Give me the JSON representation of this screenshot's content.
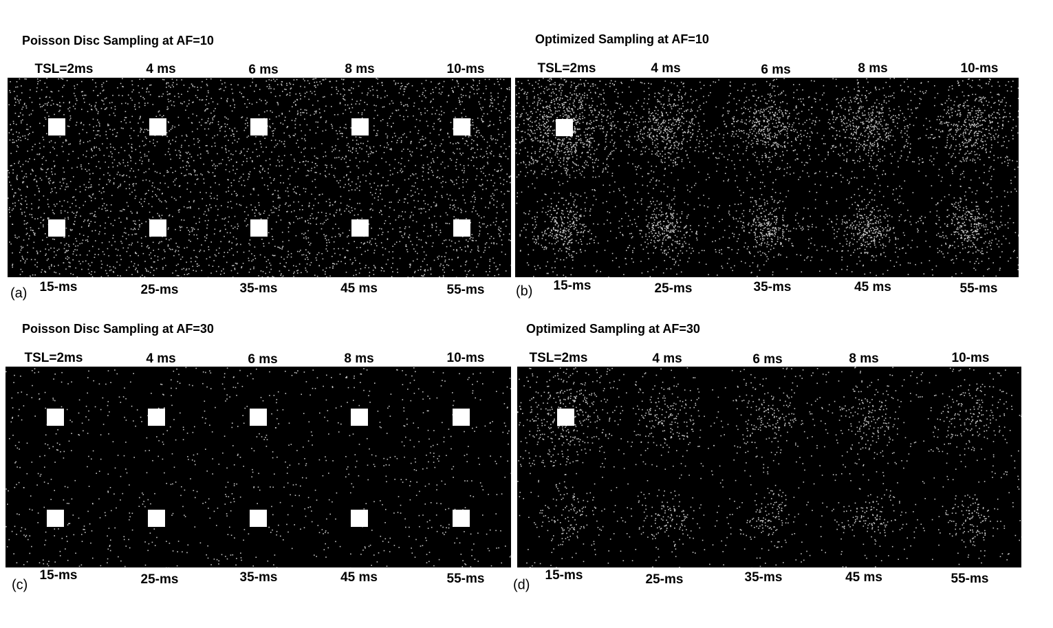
{
  "panels": [
    {
      "letter": "(a)",
      "title": "Poisson Disc Sampling at AF=10",
      "top_labels": [
        "TSL=2ms",
        "4 ms",
        "6 ms",
        "8 ms",
        "10-ms"
      ],
      "bottom_labels": [
        "15-ms",
        "25-ms",
        "35-ms",
        "45 ms",
        "55-ms"
      ]
    },
    {
      "letter": "(b)",
      "title": "Optimized Sampling at AF=10",
      "top_labels": [
        "TSL=2ms",
        "4 ms",
        "6 ms",
        "8 ms",
        "10-ms"
      ],
      "bottom_labels": [
        "15-ms",
        "25-ms",
        "35-ms",
        "45 ms",
        "55-ms"
      ]
    },
    {
      "letter": "(c)",
      "title": "Poisson Disc Sampling at AF=30",
      "top_labels": [
        "TSL=2ms",
        "4 ms",
        "6 ms",
        "8 ms",
        "10-ms"
      ],
      "bottom_labels": [
        "15-ms",
        "25-ms",
        "35-ms",
        "45 ms",
        "55-ms"
      ]
    },
    {
      "letter": "(d)",
      "title": "Optimized Sampling at AF=30",
      "top_labels": [
        "TSL=2ms",
        "4 ms",
        "6 ms",
        "8 ms",
        "10-ms"
      ],
      "bottom_labels": [
        "15-ms",
        "25-ms",
        "35-ms",
        "45 ms",
        "55-ms"
      ]
    }
  ]
}
